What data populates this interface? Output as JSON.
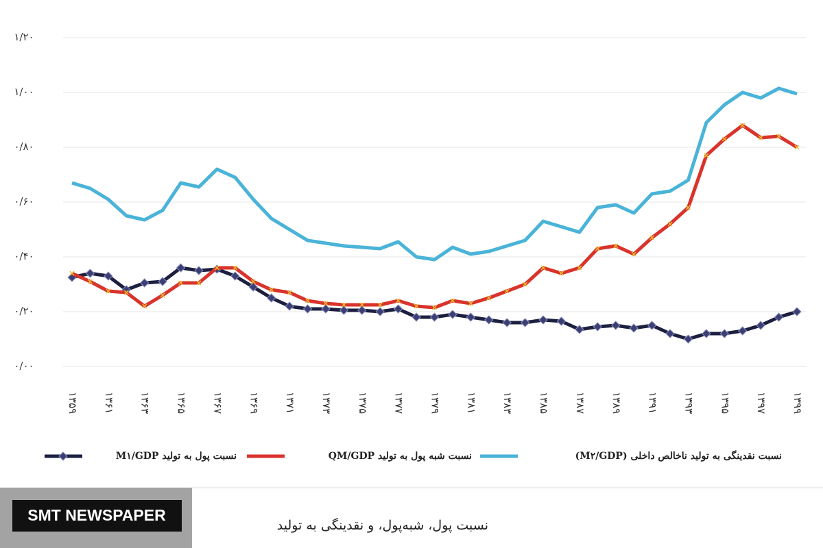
{
  "chart_data": {
    "type": "line",
    "categories": [
      "۱۳۵۹",
      null,
      "۱۳۶۱",
      null,
      "۱۳۶۳",
      null,
      "۱۳۶۵",
      null,
      "۱۳۶۷",
      null,
      "۱۳۶۹",
      null,
      "۱۳۷۱",
      null,
      "۱۳۷۳",
      null,
      "۱۳۷۵",
      null,
      "۱۳۷۷",
      null,
      "۱۳۷۹",
      null,
      "۱۳۸۱",
      null,
      "۱۳۸۳",
      null,
      "۱۳۸۵",
      null,
      "۱۳۸۷",
      null,
      "۱۳۸۹",
      null,
      "۱۳۹۱",
      null,
      "۱۳۹۳",
      null,
      "۱۳۹۵",
      null,
      "۱۳۹۷",
      null,
      "۱۳۹۹"
    ],
    "series": [
      {
        "name": "نسبت پول به تولید M۱/GDP",
        "color": "#1c1f3f",
        "marker": "diamond",
        "values": [
          0.325,
          0.34,
          0.33,
          0.28,
          0.305,
          0.31,
          0.36,
          0.35,
          0.355,
          0.33,
          0.29,
          0.25,
          0.22,
          0.21,
          0.21,
          0.205,
          0.205,
          0.2,
          0.21,
          0.18,
          0.18,
          0.19,
          0.18,
          0.17,
          0.16,
          0.16,
          0.17,
          0.165,
          0.135,
          0.145,
          0.15,
          0.14,
          0.15,
          0.12,
          0.1,
          0.12,
          0.12,
          0.13,
          0.15,
          0.18,
          0.2
        ]
      },
      {
        "name": "نسبت شبه پول به تولید QM/GDP",
        "color": "#d9332b",
        "marker": "x",
        "values": [
          0.34,
          0.31,
          0.275,
          0.27,
          0.22,
          0.26,
          0.305,
          0.305,
          0.36,
          0.36,
          0.31,
          0.28,
          0.27,
          0.24,
          0.23,
          0.225,
          0.225,
          0.225,
          0.24,
          0.22,
          0.215,
          0.24,
          0.23,
          0.25,
          0.275,
          0.3,
          0.36,
          0.34,
          0.36,
          0.43,
          0.44,
          0.41,
          0.47,
          0.52,
          0.58,
          0.77,
          0.83,
          0.88,
          0.835,
          0.84,
          0.8
        ]
      },
      {
        "name": "نسبت نقدینگی به تولید ناخالص داخلی (M۲/GDP)",
        "color": "#4ab3d8",
        "values": [
          0.67,
          0.65,
          0.61,
          0.55,
          0.535,
          0.57,
          0.67,
          0.655,
          0.72,
          0.69,
          0.61,
          0.54,
          0.5,
          0.46,
          0.45,
          0.44,
          0.435,
          0.43,
          0.455,
          0.4,
          0.39,
          0.435,
          0.41,
          0.42,
          0.44,
          0.46,
          0.53,
          0.51,
          0.49,
          0.58,
          0.59,
          0.56,
          0.63,
          0.64,
          0.68,
          0.89,
          0.955,
          1.0,
          0.98,
          1.015,
          0.995
        ]
      }
    ],
    "ylim": [
      0,
      1.2
    ],
    "yticks": [
      {
        "value": 0,
        "label": "۰/۰۰"
      },
      {
        "value": 0.2,
        "label": "۰/۲۰"
      },
      {
        "value": 0.4,
        "label": "۰/۴۰"
      },
      {
        "value": 0.6,
        "label": "۰/۶۰"
      },
      {
        "value": 0.8,
        "label": "۰/۸۰"
      },
      {
        "value": 1.0,
        "label": "۱/۰۰"
      },
      {
        "value": 1.2,
        "label": "۱/۲۰"
      }
    ],
    "grid": true,
    "legend": "bottom",
    "caption": "نسبت پول، شبه‌پول، و نقدینگی به تولید"
  },
  "logo": "SMT NEWSPAPER"
}
